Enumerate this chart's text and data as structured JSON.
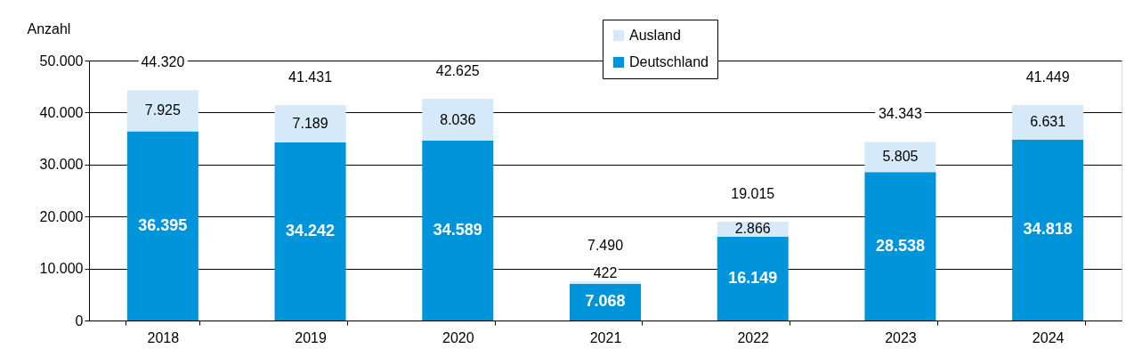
{
  "chart_data": {
    "type": "bar",
    "ylabel": "Anzahl",
    "categories": [
      "2018",
      "2019",
      "2020",
      "2021",
      "2022",
      "2023",
      "2024"
    ],
    "stacked": true,
    "series": [
      {
        "name": "Deutschland",
        "color": "#0095db",
        "values": [
          36395,
          34242,
          34589,
          7068,
          16149,
          28538,
          34818
        ],
        "value_labels": [
          "36.395",
          "34.242",
          "34.589",
          "7.068",
          "16.149",
          "28.538",
          "34.818"
        ]
      },
      {
        "name": "Ausland",
        "color": "#d6e9f8",
        "values": [
          7925,
          7189,
          8036,
          422,
          2866,
          5805,
          6631
        ],
        "value_labels": [
          "7.925",
          "7.189",
          "8.036",
          "422",
          "2.866",
          "5.805",
          "6.631"
        ]
      }
    ],
    "totals": [
      "44.320",
      "41.431",
      "42.625",
      "7.490",
      "19.015",
      "34.343",
      "41.449"
    ],
    "ylim": [
      0,
      50000
    ],
    "yticks": [
      {
        "value": 0,
        "label": "0"
      },
      {
        "value": 10000,
        "label": "10.000"
      },
      {
        "value": 20000,
        "label": "20.000"
      },
      {
        "value": 30000,
        "label": "30.000"
      },
      {
        "value": 40000,
        "label": "40.000"
      },
      {
        "value": 50000,
        "label": "50.000"
      }
    ],
    "grid": "y",
    "legend": "top"
  }
}
